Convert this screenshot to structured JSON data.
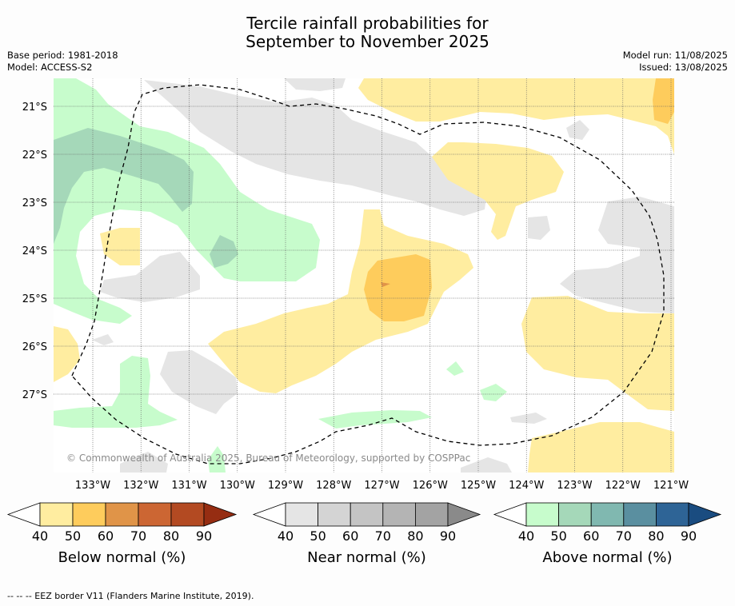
{
  "title_line1": "Tercile rainfall probabilities for",
  "title_line2": "September to November 2025",
  "base_period": "Base period: 1981-2018",
  "model": "Model: ACCESS-S2",
  "model_run": "Model run: 11/08/2025",
  "issued": "Issued: 13/08/2025",
  "copyright": "© Commonwealth of Australia 2025, Bureau of Meteorology, supported by COSPPac",
  "lat_labels": [
    "21°S",
    "22°S",
    "23°S",
    "24°S",
    "25°S",
    "26°S",
    "27°S"
  ],
  "lon_labels": [
    "133°W",
    "132°W",
    "131°W",
    "130°W",
    "129°W",
    "128°W",
    "127°W",
    "126°W",
    "125°W",
    "124°W",
    "123°W",
    "122°W",
    "121°W"
  ],
  "colorbars": [
    {
      "label": "Below normal (%)",
      "ticks": [
        "40",
        "50",
        "60",
        "70",
        "80",
        "90"
      ],
      "colors": [
        "#ffeda0",
        "#fecc5c",
        "#e09448",
        "#cc6633",
        "#b34a22",
        "#962d12"
      ]
    },
    {
      "label": "Near normal (%)",
      "ticks": [
        "40",
        "50",
        "60",
        "70",
        "80",
        "90"
      ],
      "colors": [
        "#e5e5e5",
        "#d4d4d4",
        "#c4c4c4",
        "#b4b4b4",
        "#a3a3a3",
        "#8a8a8a"
      ]
    },
    {
      "label": "Above normal (%)",
      "ticks": [
        "40",
        "50",
        "60",
        "70",
        "80",
        "90"
      ],
      "colors": [
        "#c7fccc",
        "#a5d8b9",
        "#80b8b0",
        "#5a8fa0",
        "#2e6496",
        "#1a4c80"
      ]
    }
  ],
  "footnote": "--  --  -- EEZ border V11 (Flanders Marine Institute, 2019)."
}
